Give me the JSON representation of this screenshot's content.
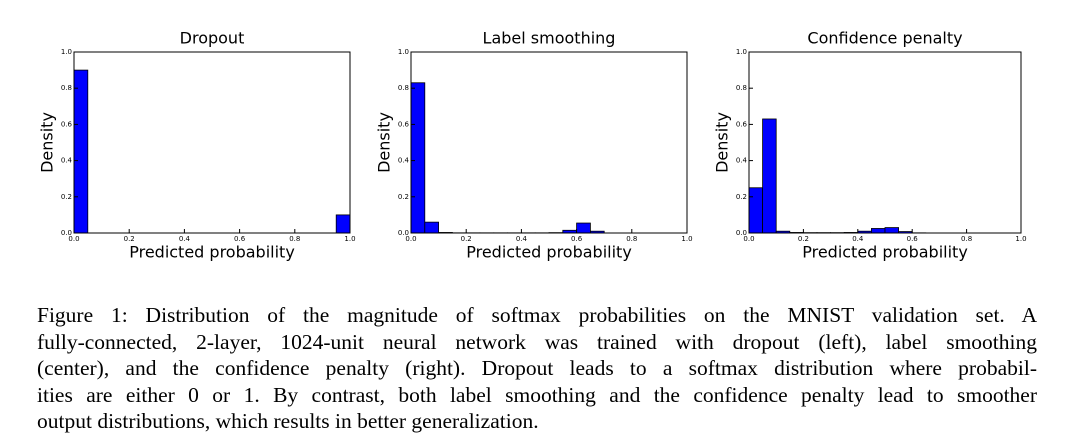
{
  "chart_data": [
    {
      "type": "histogram",
      "title": "Dropout",
      "xlabel": "Predicted probability",
      "ylabel": "Density",
      "color": "#0000ff",
      "bins": [
        0,
        0.05,
        0.1,
        0.15,
        0.2,
        0.25,
        0.3,
        0.35,
        0.4,
        0.45,
        0.5,
        0.55,
        0.6,
        0.65,
        0.7,
        0.75,
        0.8,
        0.85,
        0.9,
        0.95,
        1
      ],
      "values": [
        0.9,
        0,
        0,
        0,
        0,
        0,
        0,
        0,
        0,
        0,
        0,
        0,
        0,
        0,
        0,
        0,
        0,
        0,
        0,
        0.1
      ],
      "xlim": [
        0,
        1
      ],
      "ylim": [
        0,
        1
      ],
      "xticks": [
        {
          "value": 0,
          "label": "0.0"
        },
        0.2,
        0.4,
        0.6,
        0.8,
        {
          "value": 1,
          "label": "1.0"
        }
      ],
      "yticks": [
        {
          "value": 0,
          "label": "0.0"
        },
        0.2,
        0.4,
        0.6,
        0.8,
        {
          "value": 1,
          "label": "1.0"
        }
      ]
    },
    {
      "type": "histogram",
      "title": "Label smoothing",
      "xlabel": "Predicted probability",
      "ylabel": "Density",
      "color": "#0000ff",
      "bins": [
        0,
        0.05,
        0.1,
        0.15,
        0.2,
        0.25,
        0.3,
        0.35,
        0.4,
        0.45,
        0.5,
        0.55,
        0.6,
        0.65,
        0.7,
        0.75,
        0.8,
        0.85,
        0.9,
        0.95,
        1
      ],
      "values": [
        0.83,
        0.06,
        0.003,
        0.001,
        0.001,
        0.001,
        0.001,
        0.001,
        0.001,
        0.001,
        0.002,
        0.015,
        0.055,
        0.01,
        0,
        0,
        0,
        0,
        0,
        0
      ],
      "xlim": [
        0,
        1
      ],
      "ylim": [
        0,
        1
      ],
      "xticks": [
        {
          "value": 0,
          "label": "0.0"
        },
        0.2,
        0.4,
        0.6,
        0.8,
        {
          "value": 1,
          "label": "1.0"
        }
      ],
      "yticks": [
        {
          "value": 0,
          "label": "0.0"
        },
        0.2,
        0.4,
        0.6,
        0.8,
        {
          "value": 1,
          "label": "1.0"
        }
      ]
    },
    {
      "type": "histogram",
      "title": "Confidence penalty",
      "xlabel": "Predicted probability",
      "ylabel": "Density",
      "color": "#0000ff",
      "bins": [
        0,
        0.05,
        0.1,
        0.15,
        0.2,
        0.25,
        0.3,
        0.35,
        0.4,
        0.45,
        0.5,
        0.55,
        0.6,
        0.65,
        0.7,
        0.75,
        0.8,
        0.85,
        0.9,
        0.95,
        1
      ],
      "values": [
        0.25,
        0.63,
        0.01,
        0.003,
        0.002,
        0.002,
        0.002,
        0.003,
        0.01,
        0.025,
        0.03,
        0.008,
        0.001,
        0,
        0,
        0,
        0,
        0,
        0,
        0
      ],
      "xlim": [
        0,
        1
      ],
      "ylim": [
        0,
        1
      ],
      "xticks": [
        {
          "value": 0,
          "label": "0.0"
        },
        0.2,
        0.4,
        0.6,
        0.8,
        {
          "value": 1,
          "label": "1.0"
        }
      ],
      "yticks": [
        {
          "value": 0,
          "label": "0.0"
        },
        0.2,
        0.4,
        0.6,
        0.8,
        {
          "value": 1,
          "label": "1.0"
        }
      ]
    }
  ],
  "caption": {
    "lines": [
      "Figure 1: Distribution of the magnitude of softmax probabilities on the MNIST validation set. A",
      "fully-connected, 2-layer, 1024-unit neural network was trained with dropout (left), label smoothing",
      "(center), and the confidence penalty (right). Dropout leads to a softmax distribution where probabil-",
      "ities are either 0 or 1. By contrast, both label smoothing and the confidence penalty lead to smoother",
      "output distributions, which results in better generalization."
    ]
  }
}
